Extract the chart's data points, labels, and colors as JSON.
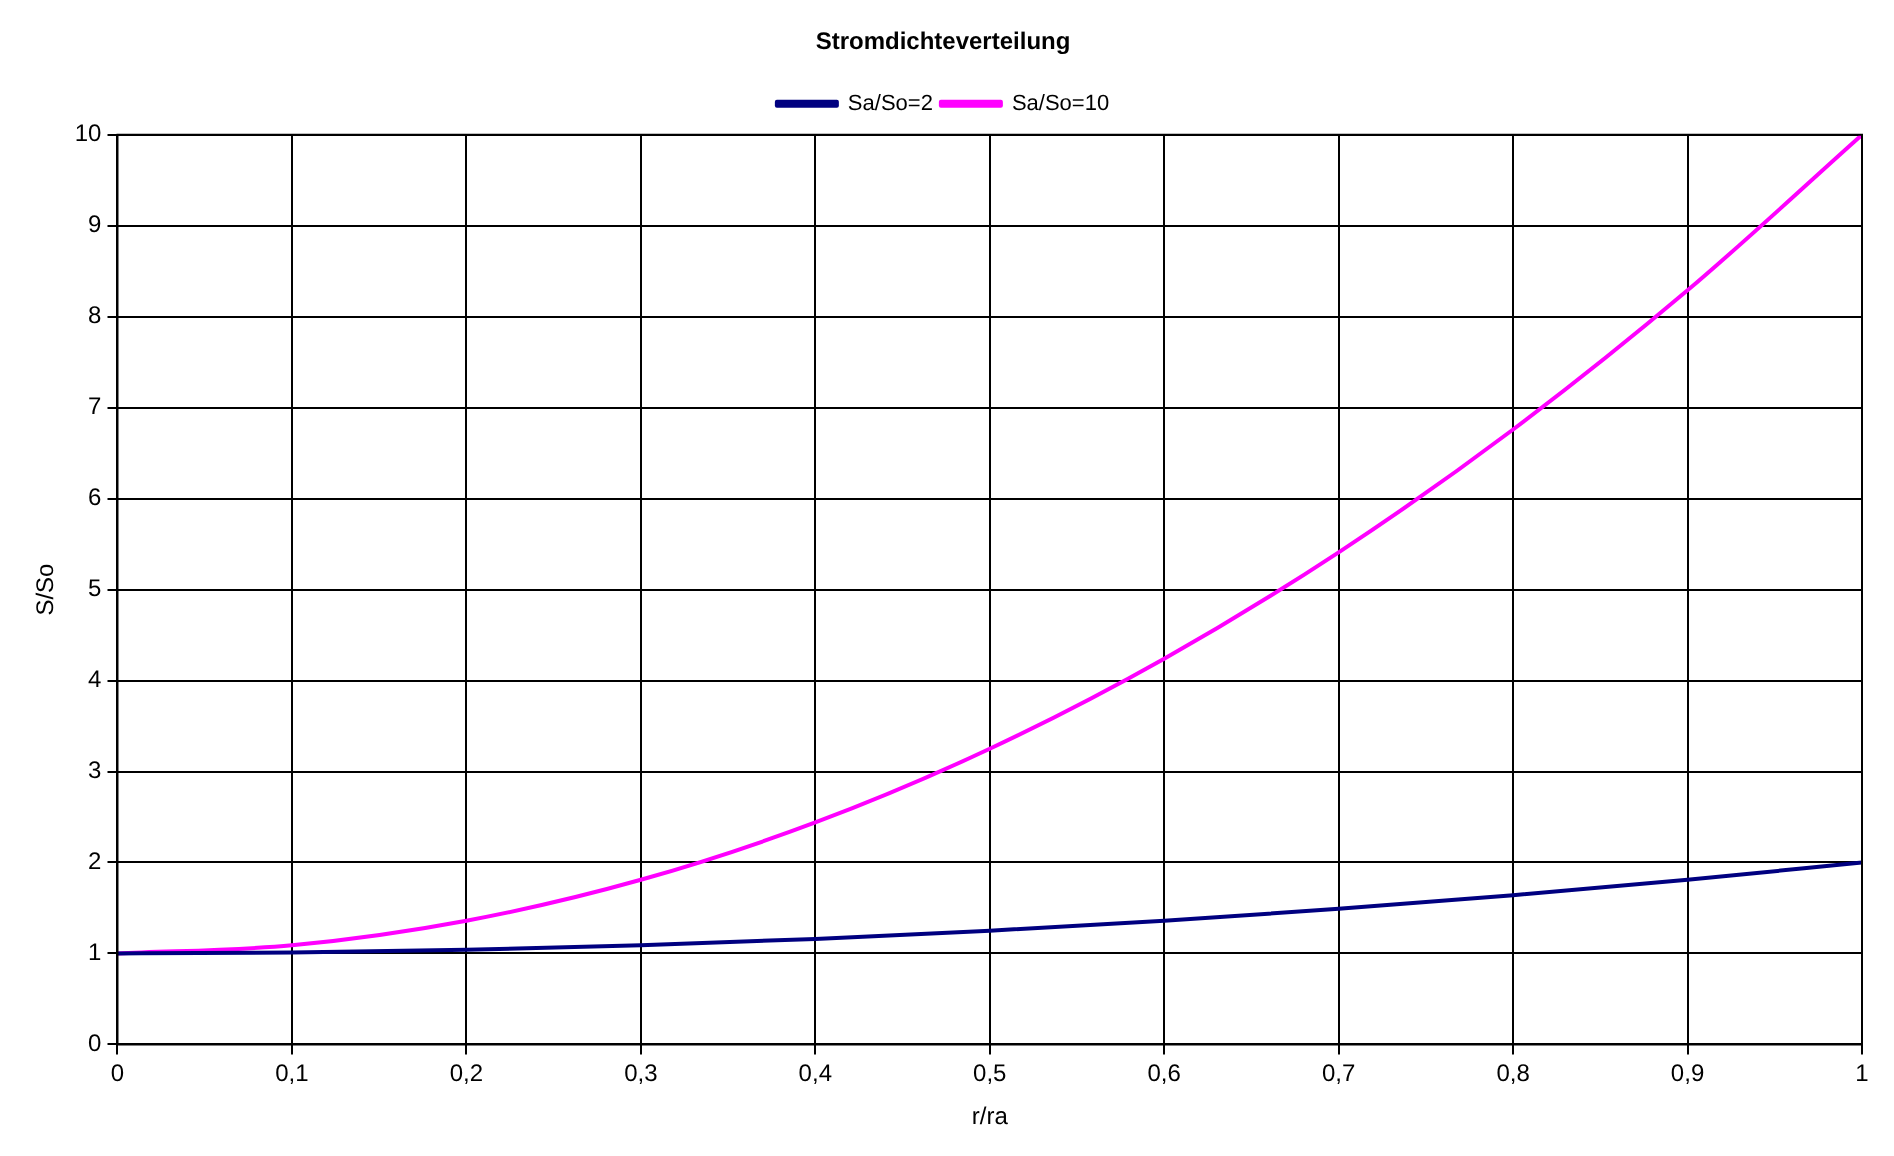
{
  "chart_data": {
    "type": "line",
    "title": "Stromdichteverteilung",
    "xlabel": "r/ra",
    "ylabel": "S/So",
    "x": [
      0,
      0.1,
      0.2,
      0.3,
      0.4,
      0.5,
      0.6,
      0.7,
      0.8,
      0.9,
      1
    ],
    "series": [
      {
        "name": "Sa/So=2",
        "color": "#000080",
        "values": [
          1,
          1.01,
          1.04,
          1.09,
          1.16,
          1.25,
          1.36,
          1.49,
          1.64,
          1.81,
          2
        ]
      },
      {
        "name": "Sa/So=10",
        "color": "#ff00ff",
        "values": [
          1,
          1.09,
          1.36,
          1.81,
          2.44,
          3.25,
          4.24,
          5.41,
          6.76,
          8.29,
          10
        ]
      }
    ],
    "xlim": [
      0,
      1
    ],
    "xticks": [
      0,
      {
        "value": 0.1,
        "label": "0,1"
      },
      {
        "value": 0.2,
        "label": "0,2"
      },
      {
        "value": 0.3,
        "label": "0,3"
      },
      {
        "value": 0.4,
        "label": "0,4"
      },
      {
        "value": 0.5,
        "label": "0,5"
      },
      {
        "value": 0.6,
        "label": "0,6"
      },
      {
        "value": 0.7,
        "label": "0,7"
      },
      {
        "value": 0.8,
        "label": "0,8"
      },
      {
        "value": 0.9,
        "label": "0,9"
      },
      1
    ],
    "ylim": [
      0,
      10
    ],
    "yticks": [
      0,
      1,
      2,
      3,
      4,
      5,
      6,
      7,
      8,
      9,
      10
    ],
    "grid": true,
    "legend": "top",
    "marker": "none",
    "line_style": "solid"
  }
}
